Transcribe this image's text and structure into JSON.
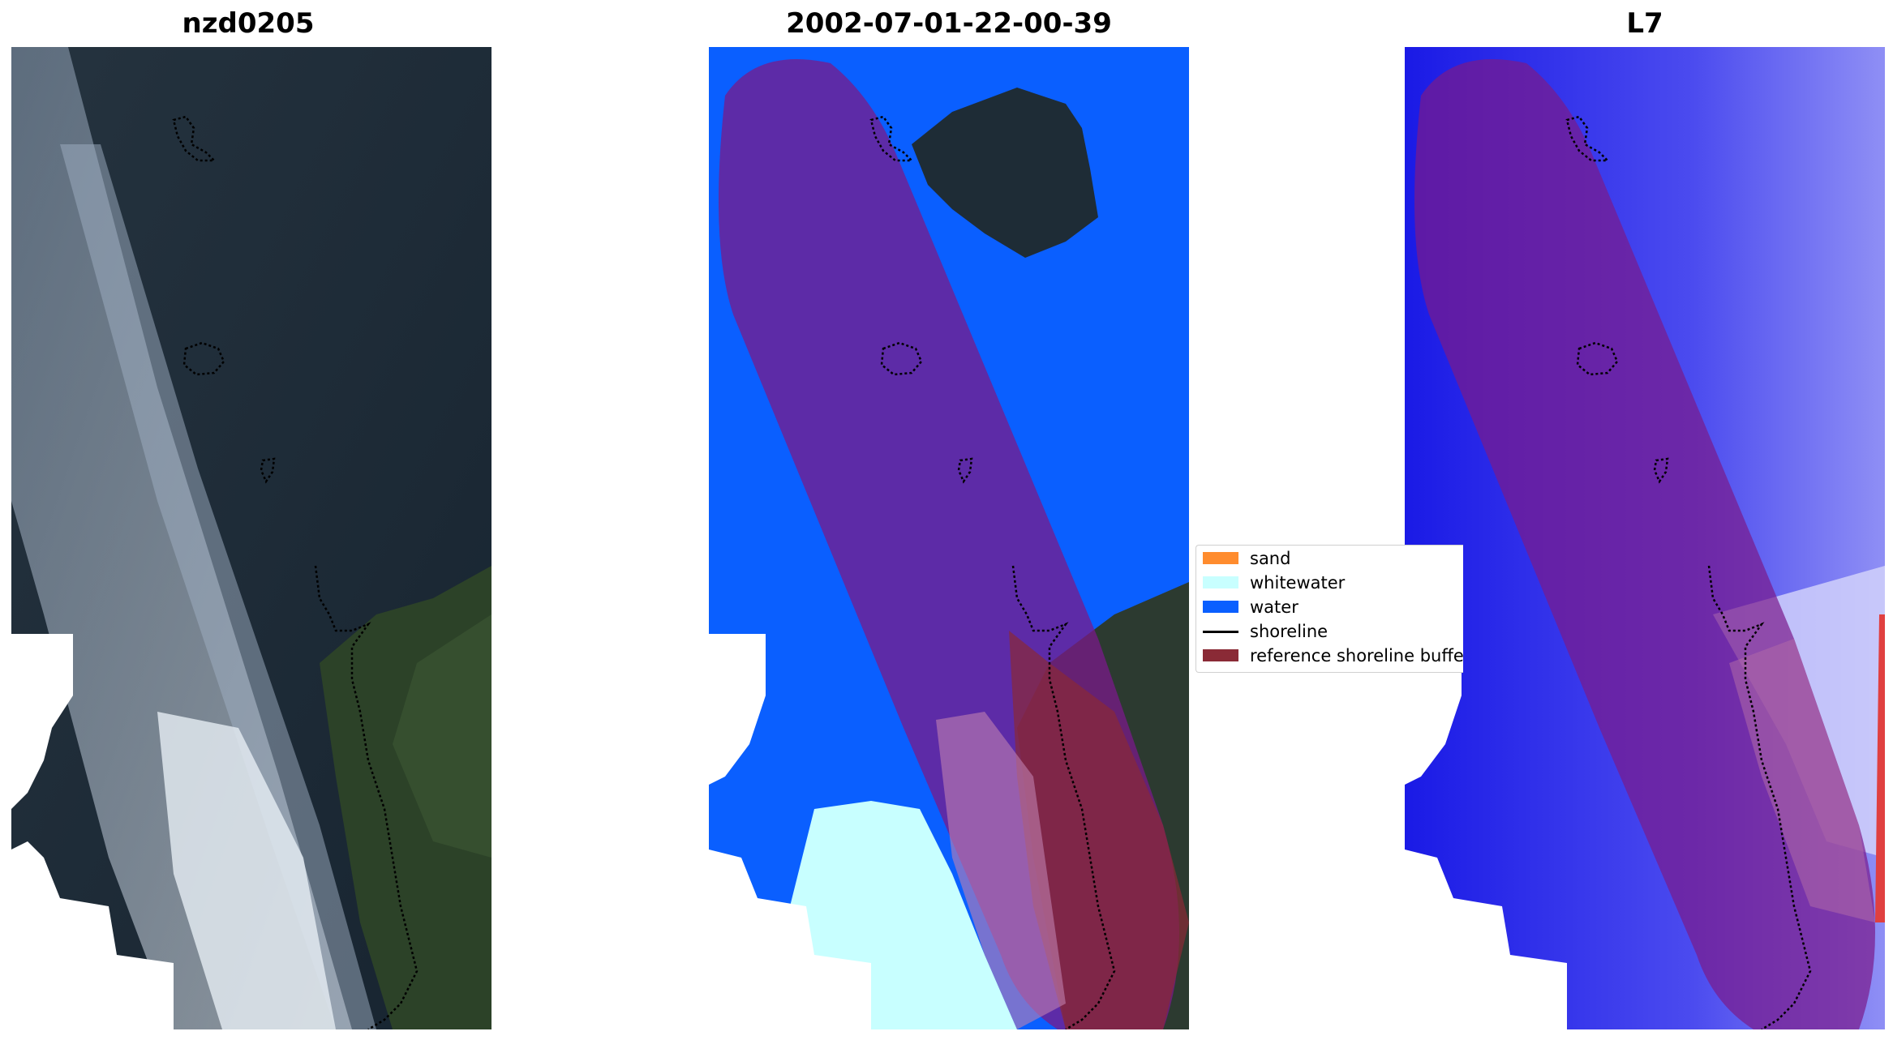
{
  "panels": [
    {
      "title": "nzd0205",
      "kind": "rgb-image"
    },
    {
      "title": "2002-07-01-22-00-39",
      "kind": "classified-image"
    },
    {
      "title": "L7",
      "kind": "mndwi-image"
    }
  ],
  "legend": {
    "items": [
      {
        "label": "sand",
        "color": "#ff8c2e",
        "type": "patch"
      },
      {
        "label": "whitewater",
        "color": "#c8ffff",
        "type": "patch"
      },
      {
        "label": "water",
        "color": "#0a5fff",
        "type": "patch"
      },
      {
        "label": "shoreline",
        "color": "#000000",
        "type": "line"
      },
      {
        "label": "reference shoreline buffer",
        "color": "#8a2a36",
        "type": "patch"
      }
    ]
  },
  "colors": {
    "background": "#ffffff",
    "buffer_overlay": "#7a1a8a",
    "land_dark": "#1e2c38",
    "sea_dark": "#1c2a38",
    "cloud": "#b9c6d6",
    "vegetation": "#2e4a2a"
  }
}
